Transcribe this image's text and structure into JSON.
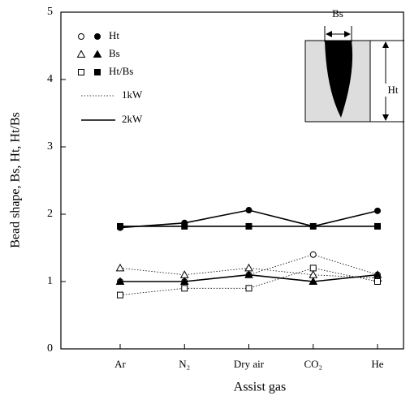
{
  "chart_data": {
    "type": "line",
    "x_label": "Assist gas",
    "y_label": "Bead shape, Bs, Ht, Ht/Bs",
    "categories": [
      "Ar",
      "N₂",
      "Dry air",
      "CO₂",
      "He"
    ],
    "ylim": [
      0,
      5
    ],
    "yticks": [
      0,
      1,
      2,
      3,
      4,
      5
    ],
    "color": "#000000",
    "legend": {
      "markers": [
        "Ht",
        "Bs",
        "Ht/Bs"
      ],
      "lines": [
        "1kW",
        "2kW"
      ]
    },
    "series": [
      {
        "marker": "circle",
        "filled": false,
        "dashed": true,
        "values": [
          1.0,
          1.0,
          1.1,
          1.4,
          1.1
        ]
      },
      {
        "marker": "circle",
        "filled": true,
        "dashed": false,
        "values": [
          1.8,
          1.87,
          2.06,
          1.82,
          2.05
        ]
      },
      {
        "marker": "triangle",
        "filled": false,
        "dashed": true,
        "values": [
          1.2,
          1.1,
          1.2,
          1.1,
          1.05
        ]
      },
      {
        "marker": "triangle",
        "filled": true,
        "dashed": false,
        "values": [
          1.0,
          1.0,
          1.1,
          1.0,
          1.1
        ]
      },
      {
        "marker": "square",
        "filled": false,
        "dashed": true,
        "values": [
          0.8,
          0.9,
          0.9,
          1.2,
          1.0
        ]
      },
      {
        "marker": "square",
        "filled": true,
        "dashed": false,
        "values": [
          1.82,
          1.82,
          1.82,
          1.82,
          1.82
        ]
      }
    ],
    "annotations": [
      "Bs",
      "Ht"
    ]
  }
}
